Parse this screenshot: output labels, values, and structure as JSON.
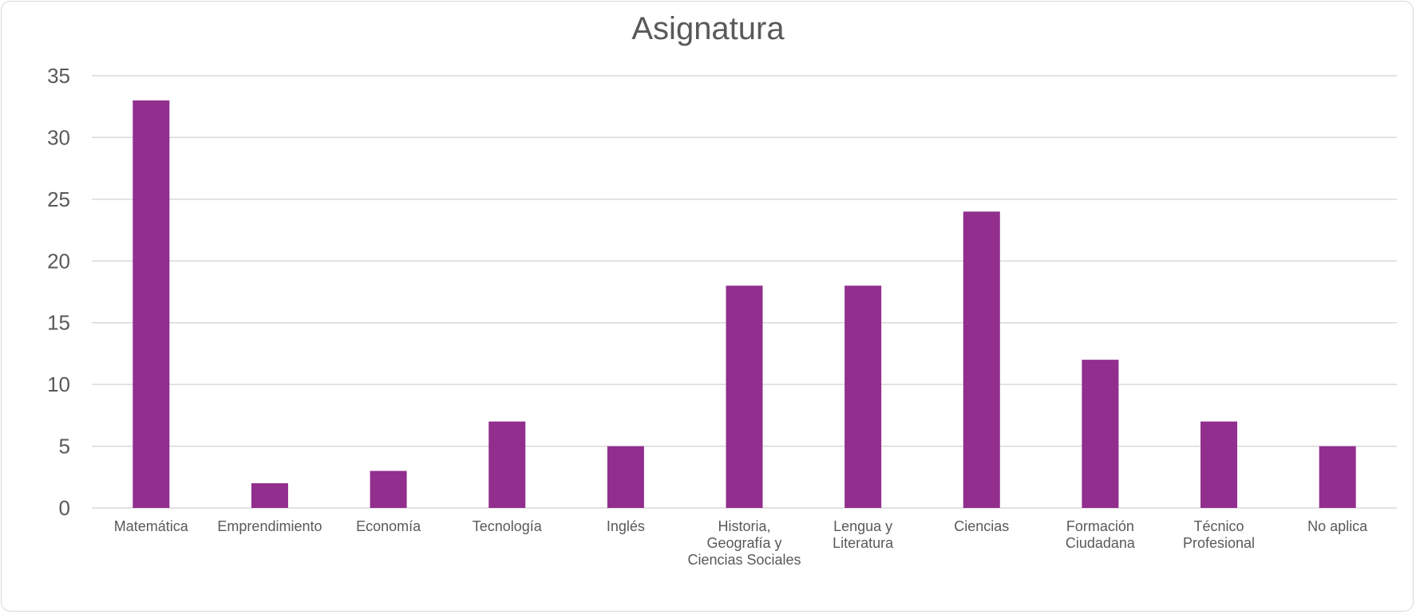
{
  "chart_data": {
    "type": "bar",
    "title": "Asignatura",
    "xlabel": "",
    "ylabel": "",
    "ylim": [
      0,
      35
    ],
    "yticks": [
      0,
      5,
      10,
      15,
      20,
      25,
      30,
      35
    ],
    "grid": true,
    "legend": "none",
    "bar_color": "#912e8e",
    "grid_color": "#d9d9d9",
    "categories": [
      [
        "Matemática"
      ],
      [
        "Emprendimiento"
      ],
      [
        "Economía"
      ],
      [
        "Tecnología"
      ],
      [
        "Inglés"
      ],
      [
        "Historia,",
        "Geografía y",
        "Ciencias Sociales"
      ],
      [
        "Lengua y",
        "Literatura"
      ],
      [
        "Ciencias"
      ],
      [
        "Formación",
        "Ciudadana"
      ],
      [
        "Técnico",
        "Profesional"
      ],
      [
        "No aplica"
      ]
    ],
    "values": [
      33,
      2,
      3,
      7,
      5,
      18,
      18,
      24,
      12,
      7,
      5
    ]
  }
}
